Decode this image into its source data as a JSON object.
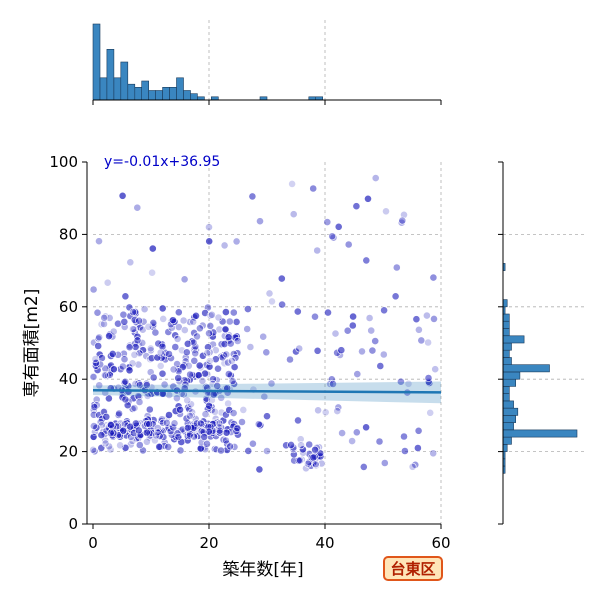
{
  "chart_data": {
    "type": "scatter",
    "xlabel": "築年数[年]",
    "ylabel": "専有面積[m2]",
    "xlim": [
      0,
      60
    ],
    "ylim": [
      0,
      100
    ],
    "x_ticks": [
      "0",
      "20",
      "40",
      "60"
    ],
    "y_ticks": [
      "0",
      "20",
      "40",
      "60",
      "80",
      "100"
    ],
    "grid": true,
    "marker_color": "#1010b8",
    "regression": {
      "label": "y=-0.01x+36.95",
      "slope": -0.01,
      "intercept": 36.95,
      "color": "#1f77b4"
    },
    "hist_color": "#3a86c0",
    "area_badge": "台東区",
    "marginal_x_counts": [
      24,
      7,
      16,
      7,
      12,
      5,
      4,
      6,
      3,
      3,
      4,
      4,
      7,
      3,
      2,
      1,
      0,
      1,
      0,
      0,
      0,
      0,
      0,
      0,
      1,
      0,
      0,
      0,
      0,
      0,
      0,
      1,
      1,
      0,
      0,
      0,
      0,
      0,
      0,
      0,
      0,
      0,
      0,
      0,
      0,
      0,
      0,
      0,
      0,
      0
    ],
    "marginal_y_counts": [
      0,
      0,
      0,
      0,
      0,
      0,
      0,
      1,
      1,
      1,
      2,
      4,
      35,
      5,
      6,
      7,
      5,
      3,
      3,
      6,
      8,
      22,
      4,
      3,
      4,
      10,
      3,
      3,
      3,
      1,
      2,
      0,
      0,
      0,
      0,
      1,
      0,
      0,
      0,
      0,
      0,
      0,
      0,
      0,
      0,
      0,
      0,
      0,
      0,
      0
    ]
  }
}
